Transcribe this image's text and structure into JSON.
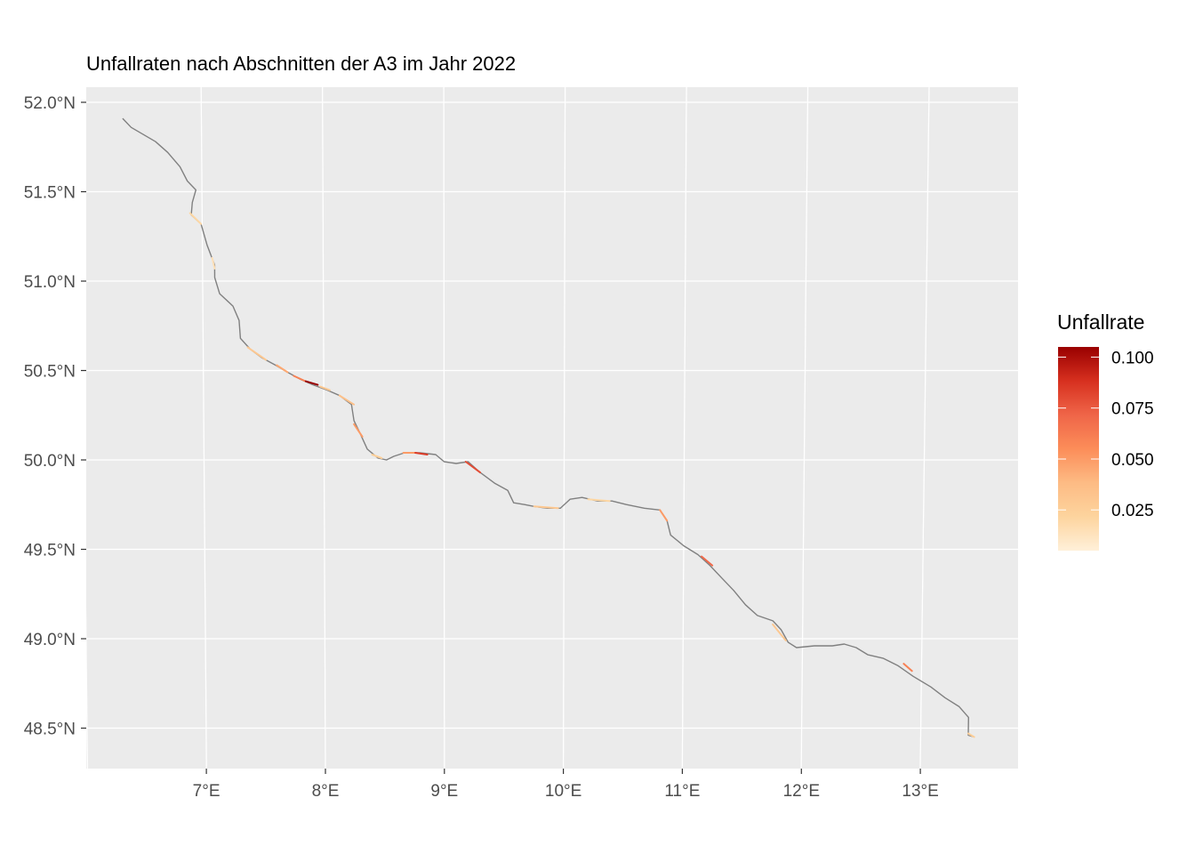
{
  "title": "Unfallraten nach Abschnitten der A3 im Jahr 2022",
  "map": {
    "lat_ticks": [
      52.0,
      51.5,
      51.0,
      50.5,
      50.0,
      49.5,
      49.0,
      48.5
    ],
    "lat_labels": [
      "52.0°N",
      "51.5°N",
      "51.0°N",
      "50.5°N",
      "50.0°N",
      "49.5°N",
      "49.0°N",
      "48.5°N"
    ],
    "lon_ticks": [
      7,
      8,
      9,
      10,
      11,
      12,
      13
    ],
    "lon_labels": [
      "7°E",
      "8°E",
      "9°E",
      "10°E",
      "11°E",
      "12°E",
      "13°E"
    ],
    "lon_range": [
      6.0,
      13.8
    ],
    "lat_range": [
      48.3,
      52.1
    ],
    "colors": {
      "panel_background": "#ebebeb",
      "graticule": "#ffffff",
      "route_no_data": "#808080",
      "scale": [
        "#fff0d9",
        "#fdd49e",
        "#fdbb84",
        "#fc8d59",
        "#ef6548",
        "#d7301f",
        "#990000"
      ]
    }
  },
  "legend": {
    "title": "Unfallrate",
    "range": [
      0.005,
      0.105
    ],
    "breaks": [
      0.025,
      0.05,
      0.075,
      0.1
    ],
    "break_labels": [
      "0.025",
      "0.050",
      "0.075",
      "0.100"
    ]
  },
  "chart_data": {
    "type": "line",
    "title": "Unfallraten nach Abschnitten der A3 im Jahr 2022",
    "xlabel": "",
    "ylabel": "",
    "route": [
      [
        6.35,
        51.91
      ],
      [
        6.42,
        51.86
      ],
      [
        6.52,
        51.82
      ],
      [
        6.62,
        51.78
      ],
      [
        6.72,
        51.72
      ],
      [
        6.82,
        51.64
      ],
      [
        6.88,
        51.56
      ],
      [
        6.95,
        51.51
      ],
      [
        6.92,
        51.44
      ],
      [
        6.91,
        51.37
      ],
      [
        6.99,
        51.32
      ],
      [
        7.04,
        51.2
      ],
      [
        7.1,
        51.09
      ],
      [
        7.1,
        51.02
      ],
      [
        7.14,
        50.93
      ],
      [
        7.25,
        50.86
      ],
      [
        7.3,
        50.78
      ],
      [
        7.31,
        50.68
      ],
      [
        7.39,
        50.62
      ],
      [
        7.49,
        50.57
      ],
      [
        7.6,
        50.53
      ],
      [
        7.7,
        50.49
      ],
      [
        7.81,
        50.45
      ],
      [
        7.91,
        50.42
      ],
      [
        8.03,
        50.39
      ],
      [
        8.13,
        50.36
      ],
      [
        8.23,
        50.31
      ],
      [
        8.25,
        50.22
      ],
      [
        8.3,
        50.15
      ],
      [
        8.36,
        50.06
      ],
      [
        8.45,
        50.01
      ],
      [
        8.52,
        50.0
      ],
      [
        8.58,
        50.02
      ],
      [
        8.67,
        50.04
      ],
      [
        8.8,
        50.04
      ],
      [
        8.93,
        50.03
      ],
      [
        9.0,
        49.99
      ],
      [
        9.1,
        49.98
      ],
      [
        9.2,
        49.99
      ],
      [
        9.3,
        49.93
      ],
      [
        9.42,
        49.87
      ],
      [
        9.53,
        49.83
      ],
      [
        9.58,
        49.76
      ],
      [
        9.67,
        49.75
      ],
      [
        9.75,
        49.74
      ],
      [
        9.86,
        49.73
      ],
      [
        9.97,
        49.73
      ],
      [
        10.05,
        49.78
      ],
      [
        10.15,
        49.79
      ],
      [
        10.28,
        49.77
      ],
      [
        10.4,
        49.77
      ],
      [
        10.52,
        49.75
      ],
      [
        10.67,
        49.73
      ],
      [
        10.8,
        49.72
      ],
      [
        10.86,
        49.66
      ],
      [
        10.89,
        49.58
      ],
      [
        11.0,
        49.52
      ],
      [
        11.12,
        49.47
      ],
      [
        11.22,
        49.41
      ],
      [
        11.32,
        49.34
      ],
      [
        11.42,
        49.27
      ],
      [
        11.52,
        49.19
      ],
      [
        11.62,
        49.13
      ],
      [
        11.75,
        49.1
      ],
      [
        11.82,
        49.05
      ],
      [
        11.88,
        48.98
      ],
      [
        11.95,
        48.95
      ],
      [
        12.1,
        48.96
      ],
      [
        12.25,
        48.96
      ],
      [
        12.35,
        48.97
      ],
      [
        12.45,
        48.95
      ],
      [
        12.55,
        48.91
      ],
      [
        12.68,
        48.89
      ],
      [
        12.8,
        48.85
      ],
      [
        12.93,
        48.79
      ],
      [
        13.08,
        48.73
      ],
      [
        13.2,
        48.67
      ],
      [
        13.32,
        48.62
      ],
      [
        13.4,
        48.56
      ],
      [
        13.4,
        48.46
      ],
      [
        13.45,
        48.45
      ]
    ],
    "segments": [
      {
        "from": [
          6.9,
          51.38
        ],
        "to": [
          6.99,
          51.32
        ],
        "rate": 0.02
      },
      {
        "from": [
          7.08,
          51.13
        ],
        "to": [
          7.1,
          51.07
        ],
        "rate": 0.015
      },
      {
        "from": [
          7.37,
          50.63
        ],
        "to": [
          7.52,
          50.56
        ],
        "rate": 0.03
      },
      {
        "from": [
          7.61,
          50.53
        ],
        "to": [
          7.7,
          50.49
        ],
        "rate": 0.045
      },
      {
        "from": [
          7.75,
          50.47
        ],
        "to": [
          7.85,
          50.44
        ],
        "rate": 0.06
      },
      {
        "from": [
          7.85,
          50.44
        ],
        "to": [
          7.95,
          50.42
        ],
        "rate": 0.105
      },
      {
        "from": [
          7.97,
          50.41
        ],
        "to": [
          8.05,
          50.39
        ],
        "rate": 0.03
      },
      {
        "from": [
          8.13,
          50.36
        ],
        "to": [
          8.25,
          50.31
        ],
        "rate": 0.035
      },
      {
        "from": [
          8.25,
          50.2
        ],
        "to": [
          8.32,
          50.13
        ],
        "rate": 0.05
      },
      {
        "from": [
          8.4,
          50.03
        ],
        "to": [
          8.48,
          50.01
        ],
        "rate": 0.025
      },
      {
        "from": [
          8.66,
          50.04
        ],
        "to": [
          8.76,
          50.04
        ],
        "rate": 0.05
      },
      {
        "from": [
          8.76,
          50.04
        ],
        "to": [
          8.86,
          50.03
        ],
        "rate": 0.085
      },
      {
        "from": [
          9.18,
          49.99
        ],
        "to": [
          9.3,
          49.93
        ],
        "rate": 0.08
      },
      {
        "from": [
          9.75,
          49.74
        ],
        "to": [
          9.95,
          49.73
        ],
        "rate": 0.03
      },
      {
        "from": [
          10.2,
          49.78
        ],
        "to": [
          10.38,
          49.77
        ],
        "rate": 0.02
      },
      {
        "from": [
          10.8,
          49.72
        ],
        "to": [
          10.86,
          49.66
        ],
        "rate": 0.05
      },
      {
        "from": [
          11.15,
          49.46
        ],
        "to": [
          11.24,
          49.41
        ],
        "rate": 0.07
      },
      {
        "from": [
          11.75,
          49.08
        ],
        "to": [
          11.86,
          48.99
        ],
        "rate": 0.03
      },
      {
        "from": [
          12.85,
          48.86
        ],
        "to": [
          12.92,
          48.82
        ],
        "rate": 0.06
      },
      {
        "from": [
          13.4,
          48.47
        ],
        "to": [
          13.45,
          48.45
        ],
        "rate": 0.025
      }
    ]
  }
}
